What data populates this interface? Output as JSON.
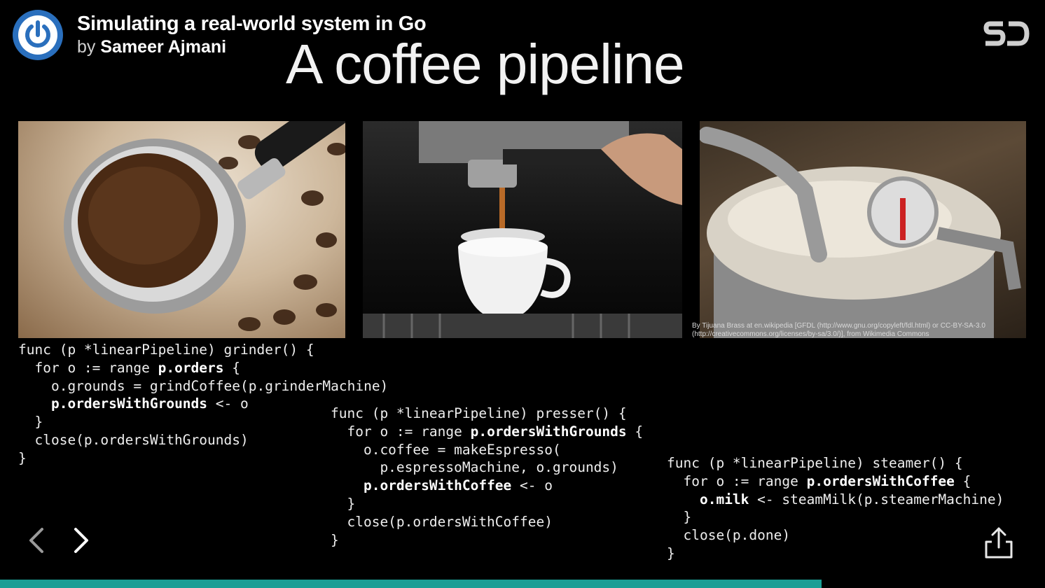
{
  "header": {
    "title": "Simulating a real-world system in Go",
    "by": "by",
    "author": "Sameer Ajmani"
  },
  "slide": {
    "title": "A coffee pipeline",
    "credit": "By Tijuana Brass at en.wikipedia [GFDL (http://www.gnu.org/copyleft/fdl.html) or CC-BY-SA-3.0 (http://creativecommons.org/licenses/by-sa/3.0/)], from Wikimedia Commons",
    "code": [
      [
        [
          {
            "t": "func (p *linearPipeline) grinder() {"
          }
        ],
        [
          {
            "t": "  for o := range "
          },
          {
            "t": "p.orders",
            "b": true
          },
          {
            "t": " {"
          }
        ],
        [
          {
            "t": "    o.grounds = grindCoffee(p.grinderMachine)"
          }
        ],
        [
          {
            "t": "    "
          },
          {
            "t": "p.ordersWithGrounds",
            "b": true
          },
          {
            "t": " <- o"
          }
        ],
        [
          {
            "t": "  }"
          }
        ],
        [
          {
            "t": "  close(p.ordersWithGrounds)"
          }
        ],
        [
          {
            "t": "}"
          }
        ]
      ],
      [
        [
          {
            "t": "func (p *linearPipeline) presser() {"
          }
        ],
        [
          {
            "t": "  for o := range "
          },
          {
            "t": "p.ordersWithGrounds",
            "b": true
          },
          {
            "t": " {"
          }
        ],
        [
          {
            "t": "    o.coffee = makeEspresso("
          }
        ],
        [
          {
            "t": "      p.espressoMachine, o.grounds)"
          }
        ],
        [
          {
            "t": "    "
          },
          {
            "t": "p.ordersWithCoffee",
            "b": true
          },
          {
            "t": " <- o"
          }
        ],
        [
          {
            "t": "  }"
          }
        ],
        [
          {
            "t": "  close(p.ordersWithCoffee)"
          }
        ],
        [
          {
            "t": "}"
          }
        ]
      ],
      [
        [
          {
            "t": "func (p *linearPipeline) steamer() {"
          }
        ],
        [
          {
            "t": "  for o := range "
          },
          {
            "t": "p.ordersWithCoffee",
            "b": true
          },
          {
            "t": " {"
          }
        ],
        [
          {
            "t": "    "
          },
          {
            "t": "o.milk",
            "b": true
          },
          {
            "t": " <- steamMilk(p.steamerMachine)"
          }
        ],
        [
          {
            "t": "  }"
          }
        ],
        [
          {
            "t": "  close(p.done)"
          }
        ],
        [
          {
            "t": "}"
          }
        ]
      ]
    ]
  },
  "icons": {
    "logo": "power-icon",
    "brand": "sd-logo-icon",
    "prev": "chevron-left-icon",
    "next": "chevron-right-icon",
    "share": "share-icon"
  },
  "progress": {
    "fraction": 0.786
  },
  "colors": {
    "logo": "#2a6fbd",
    "progress": "#1a9e95",
    "background": "#000000"
  }
}
